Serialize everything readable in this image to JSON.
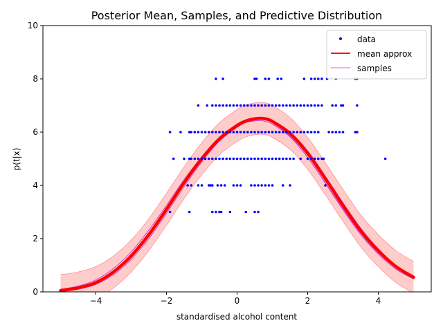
{
  "chart_data": {
    "type": "scatter",
    "title": "Posterior Mean, Samples, and Predictive Distribution",
    "xlabel": "standardised alcohol content",
    "ylabel": "p(t|x)",
    "xlim": [
      -5.5,
      5.5
    ],
    "ylim": [
      0,
      10
    ],
    "x_ticks": [
      -4,
      -2,
      0,
      2,
      4
    ],
    "y_ticks": [
      0,
      2,
      4,
      6,
      8,
      10
    ],
    "grid": false,
    "legend_position": "top-right",
    "legend": [
      {
        "label": "data",
        "kind": "marker",
        "color": "#0000ff"
      },
      {
        "label": "mean approx",
        "kind": "line",
        "color": "#ff0000"
      },
      {
        "label": "samples",
        "kind": "thin-line",
        "color": "#cc33cc"
      }
    ],
    "colors": {
      "data": "#0000ff",
      "mean": "#ff0000",
      "samples": "#cc33cc",
      "band": "#ff9999"
    },
    "scatter_points": [
      {
        "x": -1.9,
        "y": 3
      },
      {
        "x": -1.35,
        "y": 3
      },
      {
        "x": -0.7,
        "y": 3
      },
      {
        "x": -0.6,
        "y": 3
      },
      {
        "x": -0.5,
        "y": 3
      },
      {
        "x": -0.45,
        "y": 3
      },
      {
        "x": -0.2,
        "y": 3
      },
      {
        "x": 0.25,
        "y": 3
      },
      {
        "x": 0.5,
        "y": 3
      },
      {
        "x": 0.6,
        "y": 3
      },
      {
        "x": -1.4,
        "y": 4
      },
      {
        "x": -1.3,
        "y": 4
      },
      {
        "x": -1.1,
        "y": 4
      },
      {
        "x": -1.0,
        "y": 4
      },
      {
        "x": -0.8,
        "y": 4
      },
      {
        "x": -0.75,
        "y": 4
      },
      {
        "x": -0.7,
        "y": 4
      },
      {
        "x": -0.55,
        "y": 4
      },
      {
        "x": -0.45,
        "y": 4
      },
      {
        "x": -0.35,
        "y": 4
      },
      {
        "x": -0.1,
        "y": 4
      },
      {
        "x": 0.0,
        "y": 4
      },
      {
        "x": 0.1,
        "y": 4
      },
      {
        "x": 0.4,
        "y": 4
      },
      {
        "x": 0.5,
        "y": 4
      },
      {
        "x": 0.6,
        "y": 4
      },
      {
        "x": 0.7,
        "y": 4
      },
      {
        "x": 0.8,
        "y": 4
      },
      {
        "x": 0.9,
        "y": 4
      },
      {
        "x": 1.0,
        "y": 4
      },
      {
        "x": 1.3,
        "y": 4
      },
      {
        "x": 1.5,
        "y": 4
      },
      {
        "x": 2.5,
        "y": 4
      },
      {
        "x": -1.8,
        "y": 5
      },
      {
        "x": -1.5,
        "y": 5
      },
      {
        "x": -1.35,
        "y": 5
      },
      {
        "x": -1.3,
        "y": 5
      },
      {
        "x": -1.2,
        "y": 5
      },
      {
        "x": -1.1,
        "y": 5
      },
      {
        "x": -1.0,
        "y": 5
      },
      {
        "x": -0.9,
        "y": 5
      },
      {
        "x": -0.8,
        "y": 5
      },
      {
        "x": -0.7,
        "y": 5
      },
      {
        "x": -0.6,
        "y": 5
      },
      {
        "x": -0.5,
        "y": 5
      },
      {
        "x": -0.4,
        "y": 5
      },
      {
        "x": -0.3,
        "y": 5
      },
      {
        "x": -0.2,
        "y": 5
      },
      {
        "x": -0.1,
        "y": 5
      },
      {
        "x": 0.0,
        "y": 5
      },
      {
        "x": 0.1,
        "y": 5
      },
      {
        "x": 0.2,
        "y": 5
      },
      {
        "x": 0.3,
        "y": 5
      },
      {
        "x": 0.4,
        "y": 5
      },
      {
        "x": 0.5,
        "y": 5
      },
      {
        "x": 0.6,
        "y": 5
      },
      {
        "x": 0.7,
        "y": 5
      },
      {
        "x": 0.8,
        "y": 5
      },
      {
        "x": 0.9,
        "y": 5
      },
      {
        "x": 1.0,
        "y": 5
      },
      {
        "x": 1.1,
        "y": 5
      },
      {
        "x": 1.2,
        "y": 5
      },
      {
        "x": 1.3,
        "y": 5
      },
      {
        "x": 1.4,
        "y": 5
      },
      {
        "x": 1.5,
        "y": 5
      },
      {
        "x": 1.6,
        "y": 5
      },
      {
        "x": 1.8,
        "y": 5
      },
      {
        "x": 2.0,
        "y": 5
      },
      {
        "x": 2.1,
        "y": 5
      },
      {
        "x": 2.2,
        "y": 5
      },
      {
        "x": 2.3,
        "y": 5
      },
      {
        "x": 2.4,
        "y": 5
      },
      {
        "x": 2.45,
        "y": 5
      },
      {
        "x": 4.2,
        "y": 5
      },
      {
        "x": -1.9,
        "y": 6
      },
      {
        "x": -1.6,
        "y": 6
      },
      {
        "x": -1.35,
        "y": 6
      },
      {
        "x": -1.3,
        "y": 6
      },
      {
        "x": -1.2,
        "y": 6
      },
      {
        "x": -1.1,
        "y": 6
      },
      {
        "x": -1.0,
        "y": 6
      },
      {
        "x": -0.9,
        "y": 6
      },
      {
        "x": -0.8,
        "y": 6
      },
      {
        "x": -0.7,
        "y": 6
      },
      {
        "x": -0.6,
        "y": 6
      },
      {
        "x": -0.5,
        "y": 6
      },
      {
        "x": -0.4,
        "y": 6
      },
      {
        "x": -0.3,
        "y": 6
      },
      {
        "x": -0.2,
        "y": 6
      },
      {
        "x": -0.1,
        "y": 6
      },
      {
        "x": 0.0,
        "y": 6
      },
      {
        "x": 0.1,
        "y": 6
      },
      {
        "x": 0.2,
        "y": 6
      },
      {
        "x": 0.3,
        "y": 6
      },
      {
        "x": 0.4,
        "y": 6
      },
      {
        "x": 0.5,
        "y": 6
      },
      {
        "x": 0.6,
        "y": 6
      },
      {
        "x": 0.7,
        "y": 6
      },
      {
        "x": 0.8,
        "y": 6
      },
      {
        "x": 0.9,
        "y": 6
      },
      {
        "x": 1.0,
        "y": 6
      },
      {
        "x": 1.1,
        "y": 6
      },
      {
        "x": 1.2,
        "y": 6
      },
      {
        "x": 1.3,
        "y": 6
      },
      {
        "x": 1.4,
        "y": 6
      },
      {
        "x": 1.5,
        "y": 6
      },
      {
        "x": 1.6,
        "y": 6
      },
      {
        "x": 1.7,
        "y": 6
      },
      {
        "x": 1.8,
        "y": 6
      },
      {
        "x": 1.9,
        "y": 6
      },
      {
        "x": 2.0,
        "y": 6
      },
      {
        "x": 2.1,
        "y": 6
      },
      {
        "x": 2.2,
        "y": 6
      },
      {
        "x": 2.3,
        "y": 6
      },
      {
        "x": 2.6,
        "y": 6
      },
      {
        "x": 2.7,
        "y": 6
      },
      {
        "x": 2.8,
        "y": 6
      },
      {
        "x": 2.9,
        "y": 6
      },
      {
        "x": 3.0,
        "y": 6
      },
      {
        "x": 3.35,
        "y": 6
      },
      {
        "x": 3.4,
        "y": 6
      },
      {
        "x": -1.1,
        "y": 7
      },
      {
        "x": -0.85,
        "y": 7
      },
      {
        "x": -0.7,
        "y": 7
      },
      {
        "x": -0.6,
        "y": 7
      },
      {
        "x": -0.5,
        "y": 7
      },
      {
        "x": -0.4,
        "y": 7
      },
      {
        "x": -0.3,
        "y": 7
      },
      {
        "x": -0.2,
        "y": 7
      },
      {
        "x": -0.1,
        "y": 7
      },
      {
        "x": 0.0,
        "y": 7
      },
      {
        "x": 0.1,
        "y": 7
      },
      {
        "x": 0.2,
        "y": 7
      },
      {
        "x": 0.3,
        "y": 7
      },
      {
        "x": 0.4,
        "y": 7
      },
      {
        "x": 0.5,
        "y": 7
      },
      {
        "x": 0.6,
        "y": 7
      },
      {
        "x": 0.7,
        "y": 7
      },
      {
        "x": 0.8,
        "y": 7
      },
      {
        "x": 0.9,
        "y": 7
      },
      {
        "x": 1.0,
        "y": 7
      },
      {
        "x": 1.1,
        "y": 7
      },
      {
        "x": 1.2,
        "y": 7
      },
      {
        "x": 1.3,
        "y": 7
      },
      {
        "x": 1.4,
        "y": 7
      },
      {
        "x": 1.5,
        "y": 7
      },
      {
        "x": 1.6,
        "y": 7
      },
      {
        "x": 1.7,
        "y": 7
      },
      {
        "x": 1.8,
        "y": 7
      },
      {
        "x": 1.9,
        "y": 7
      },
      {
        "x": 2.0,
        "y": 7
      },
      {
        "x": 2.1,
        "y": 7
      },
      {
        "x": 2.2,
        "y": 7
      },
      {
        "x": 2.3,
        "y": 7
      },
      {
        "x": 2.4,
        "y": 7
      },
      {
        "x": 2.7,
        "y": 7
      },
      {
        "x": 2.8,
        "y": 7
      },
      {
        "x": 2.95,
        "y": 7
      },
      {
        "x": 3.0,
        "y": 7
      },
      {
        "x": 3.4,
        "y": 7
      },
      {
        "x": -0.6,
        "y": 8
      },
      {
        "x": -0.4,
        "y": 8
      },
      {
        "x": 0.5,
        "y": 8
      },
      {
        "x": 0.55,
        "y": 8
      },
      {
        "x": 0.8,
        "y": 8
      },
      {
        "x": 0.9,
        "y": 8
      },
      {
        "x": 1.15,
        "y": 8
      },
      {
        "x": 1.25,
        "y": 8
      },
      {
        "x": 1.9,
        "y": 8
      },
      {
        "x": 2.1,
        "y": 8
      },
      {
        "x": 2.2,
        "y": 8
      },
      {
        "x": 2.3,
        "y": 8
      },
      {
        "x": 2.4,
        "y": 8
      },
      {
        "x": 2.55,
        "y": 8
      },
      {
        "x": 2.8,
        "y": 8
      },
      {
        "x": 3.35,
        "y": 8
      },
      {
        "x": 3.4,
        "y": 8
      }
    ],
    "mean_curve": {
      "x": [
        -5,
        -4.5,
        -4,
        -3.5,
        -3,
        -2.5,
        -2,
        -1.5,
        -1,
        -0.5,
        0,
        0.25,
        0.5,
        0.65,
        0.8,
        1,
        1.5,
        2,
        2.5,
        3,
        3.5,
        4,
        4.5,
        5
      ],
      "y": [
        0.05,
        0.15,
        0.35,
        0.75,
        1.35,
        2.15,
        3.1,
        4.1,
        5.0,
        5.75,
        6.25,
        6.42,
        6.5,
        6.52,
        6.5,
        6.4,
        5.95,
        5.2,
        4.25,
        3.25,
        2.3,
        1.55,
        0.95,
        0.55
      ]
    },
    "predictive_band": {
      "x": [
        -5,
        -4.5,
        -4,
        -3.5,
        -3,
        -2.5,
        -2,
        -1.5,
        -1,
        -0.5,
        0,
        0.25,
        0.5,
        0.65,
        0.8,
        1,
        1.5,
        2,
        2.5,
        3,
        3.5,
        4,
        4.5,
        5
      ],
      "lower": [
        -0.55,
        -0.45,
        -0.25,
        0.15,
        0.75,
        1.55,
        2.5,
        3.5,
        4.4,
        5.15,
        5.65,
        5.82,
        5.9,
        5.92,
        5.9,
        5.8,
        5.35,
        4.6,
        3.65,
        2.65,
        1.7,
        0.95,
        0.35,
        -0.05
      ],
      "upper": [
        0.65,
        0.75,
        0.95,
        1.35,
        1.95,
        2.75,
        3.7,
        4.7,
        5.6,
        6.35,
        6.85,
        7.02,
        7.1,
        7.12,
        7.1,
        7.0,
        6.55,
        5.8,
        4.85,
        3.85,
        2.9,
        2.15,
        1.55,
        1.15
      ]
    },
    "sample_curves": [
      {
        "x": [
          -5,
          -4.5,
          -4,
          -3.5,
          -3,
          -2.5,
          -2,
          -1.5,
          -1,
          -0.5,
          0,
          0.25,
          0.5,
          0.65,
          0.8,
          1,
          1.5,
          2,
          2.5,
          3,
          3.5,
          4,
          4.5,
          5
        ],
        "y": [
          0.1,
          0.22,
          0.45,
          0.88,
          1.5,
          2.32,
          3.25,
          4.22,
          5.08,
          5.8,
          6.28,
          6.44,
          6.5,
          6.5,
          6.47,
          6.35,
          5.85,
          5.05,
          4.08,
          3.08,
          2.15,
          1.42,
          0.85,
          0.48
        ]
      },
      {
        "x": [
          -5,
          -4.5,
          -4,
          -3.5,
          -3,
          -2.5,
          -2,
          -1.5,
          -1,
          -0.5,
          0,
          0.25,
          0.5,
          0.65,
          0.8,
          1,
          1.5,
          2,
          2.5,
          3,
          3.5,
          4,
          4.5,
          5
        ],
        "y": [
          0.02,
          0.1,
          0.28,
          0.65,
          1.22,
          2.0,
          2.95,
          3.95,
          4.88,
          5.66,
          6.18,
          6.36,
          6.45,
          6.48,
          6.47,
          6.4,
          6.0,
          5.3,
          4.35,
          3.35,
          2.4,
          1.62,
          1.0,
          0.6
        ]
      },
      {
        "x": [
          -5,
          -4.5,
          -4,
          -3.5,
          -3,
          -2.5,
          -2,
          -1.5,
          -1,
          -0.5,
          0,
          0.25,
          0.5,
          0.65,
          0.8,
          1,
          1.5,
          2,
          2.5,
          3,
          3.5,
          4,
          4.5,
          5
        ],
        "y": [
          0.08,
          0.18,
          0.4,
          0.8,
          1.4,
          2.2,
          3.15,
          4.12,
          5.0,
          5.72,
          6.2,
          6.36,
          6.42,
          6.43,
          6.4,
          6.3,
          5.82,
          5.05,
          4.1,
          3.12,
          2.2,
          1.46,
          0.9,
          0.52
        ]
      }
    ]
  }
}
